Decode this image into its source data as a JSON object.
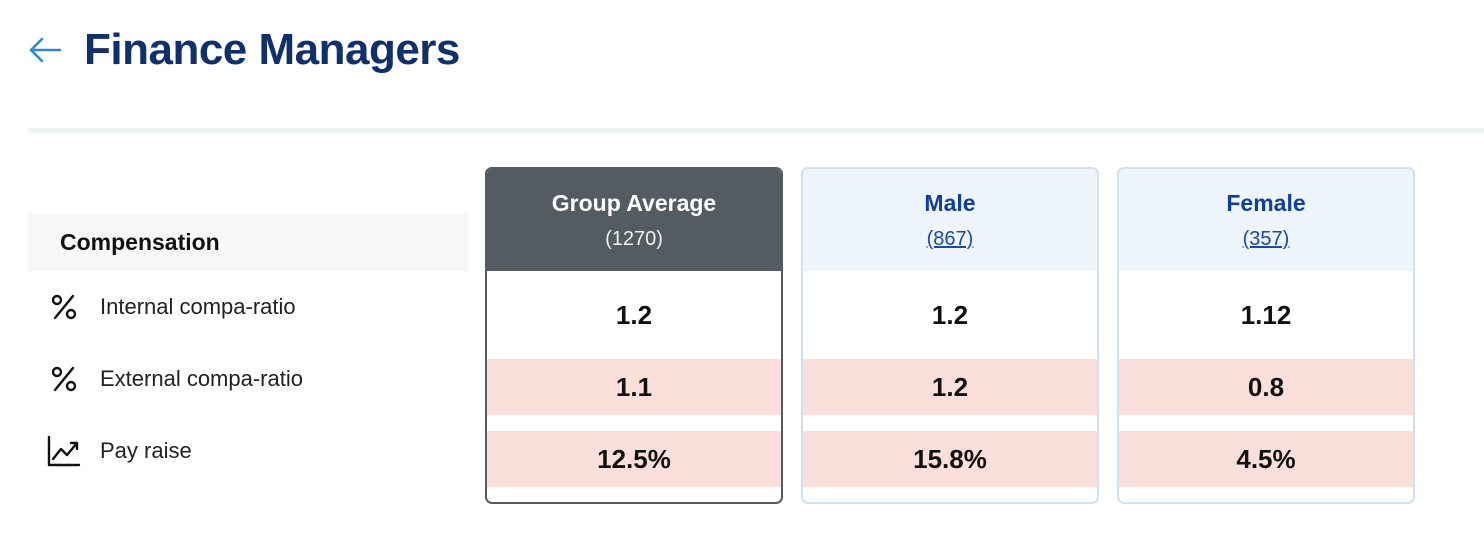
{
  "header": {
    "title": "Finance Managers",
    "back_icon": "arrow-left-icon",
    "accent": "#2d87d8"
  },
  "section": {
    "label": "Compensation"
  },
  "metrics": [
    {
      "label": "Internal compa-ratio",
      "icon": "percent-icon"
    },
    {
      "label": "External compa-ratio",
      "icon": "percent-icon"
    },
    {
      "label": "Pay raise",
      "icon": "trend-up-icon"
    }
  ],
  "columns": [
    {
      "title": "Group Average",
      "count": "(1270)",
      "values": [
        "1.2",
        "1.1",
        "12.5%"
      ]
    },
    {
      "title": "Male",
      "count": "(867)",
      "values": [
        "1.2",
        "1.2",
        "15.8%"
      ]
    },
    {
      "title": "Female",
      "count": "(357)",
      "values": [
        "1.12",
        "0.8",
        "4.5%"
      ]
    }
  ],
  "colors": {
    "title": "#10306b",
    "group_header": "#545b62",
    "segment_header": "#eef5fc",
    "segment_border": "#cfe2f3",
    "highlight": "#fbdfda"
  }
}
